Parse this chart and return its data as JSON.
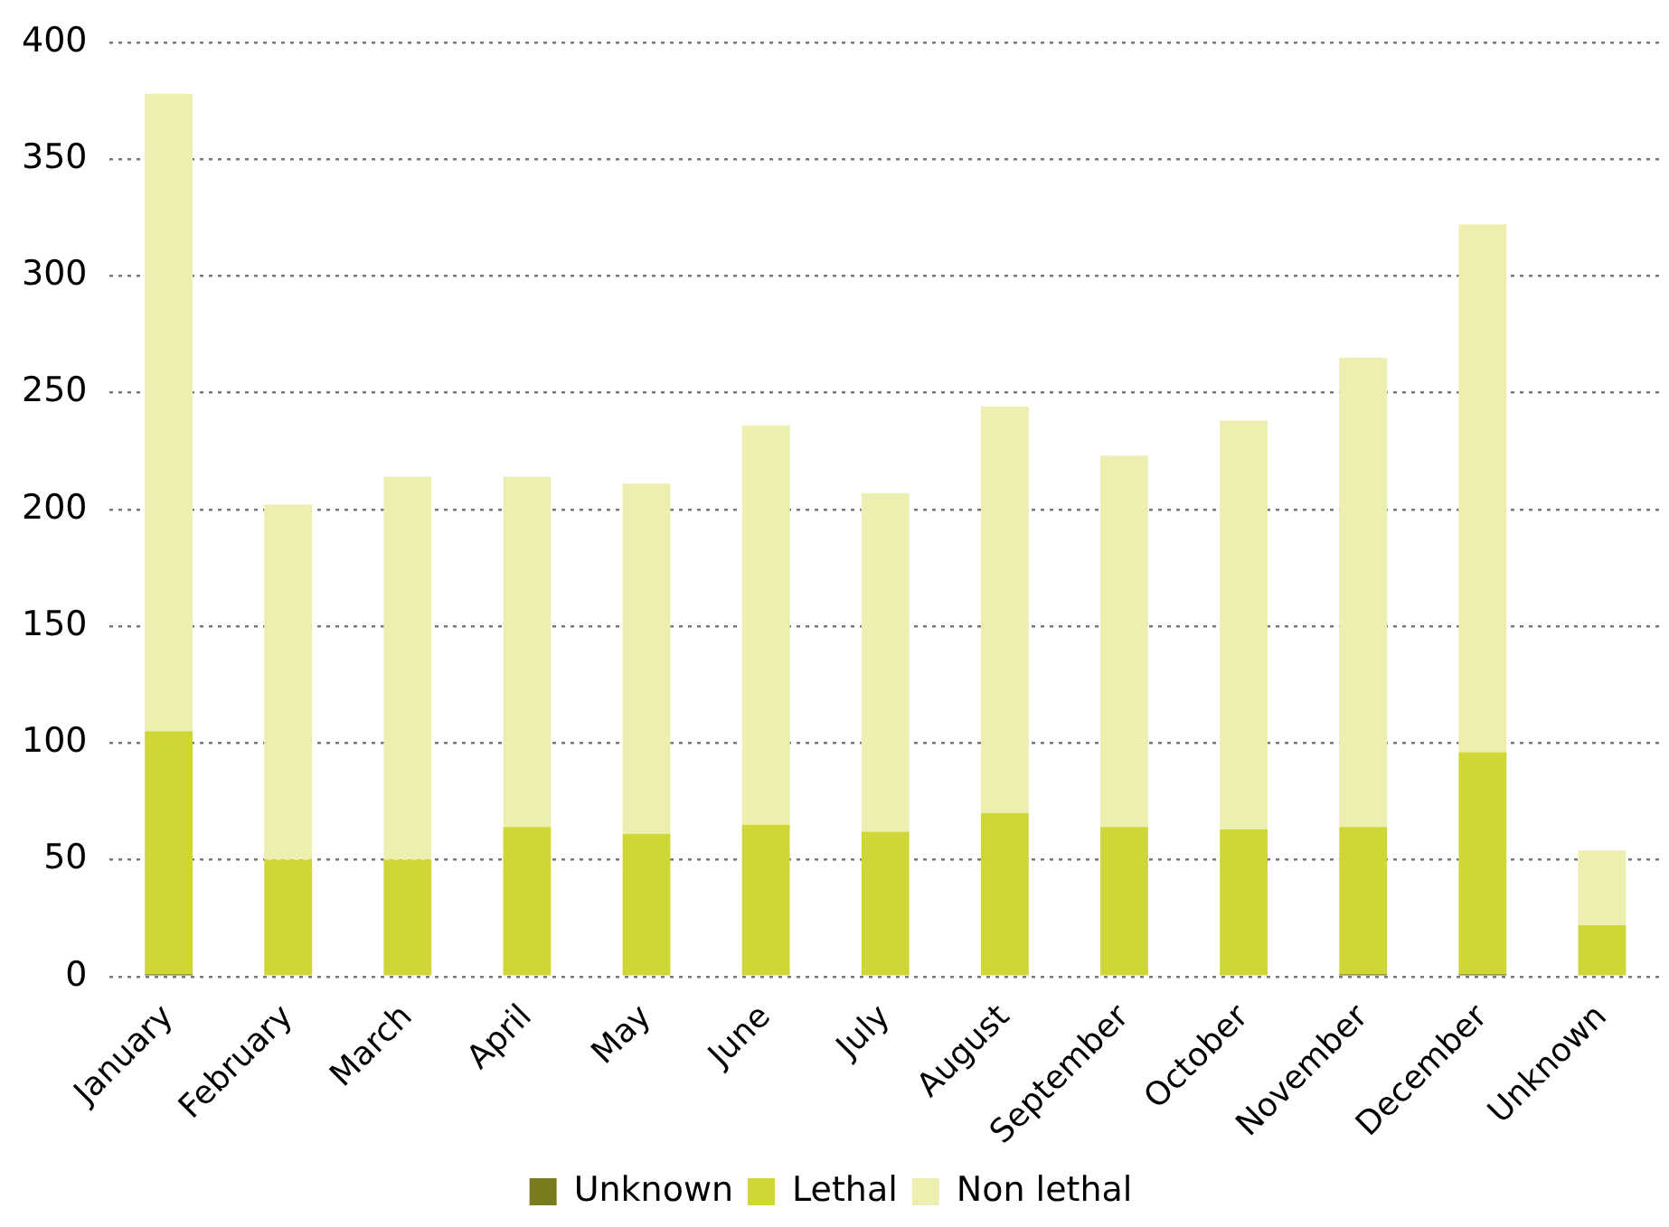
{
  "chart_data": {
    "type": "bar",
    "stacked": true,
    "categories": [
      "January",
      "February",
      "March",
      "April",
      "May",
      "June",
      "July",
      "August",
      "September",
      "October",
      "November",
      "December",
      "Unknown"
    ],
    "series": [
      {
        "name": "Unknown",
        "color": "#7a7a1e",
        "values": [
          1,
          0,
          0,
          0,
          0,
          0,
          0,
          0,
          0,
          0,
          1,
          1,
          0
        ]
      },
      {
        "name": "Lethal",
        "color": "#cfd736",
        "values": [
          104,
          50,
          50,
          64,
          61,
          65,
          62,
          70,
          64,
          63,
          63,
          95,
          22
        ]
      },
      {
        "name": "Non lethal",
        "color": "#ecefb0",
        "values": [
          273,
          152,
          164,
          150,
          150,
          171,
          145,
          174,
          159,
          175,
          201,
          226,
          32
        ]
      }
    ],
    "ylim": [
      0,
      400
    ],
    "yticks": [
      0,
      50,
      100,
      150,
      200,
      250,
      300,
      350,
      400
    ],
    "grid": "y",
    "legend": "bottom"
  }
}
